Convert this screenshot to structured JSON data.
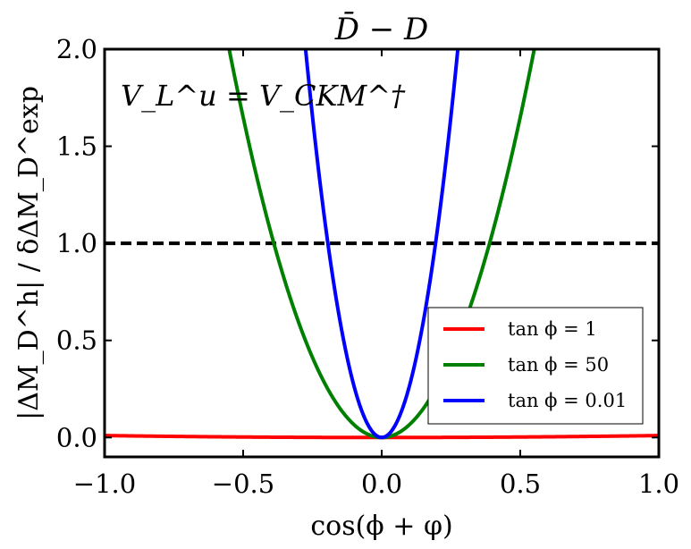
{
  "chart_data": {
    "type": "line",
    "title": "D̄ − D",
    "xlabel": "cos(ϕ + φ)",
    "ylabel": "|ΔM_D^h| / δΔM_D^exp",
    "xlim": [
      -1.0,
      1.0
    ],
    "ylim": [
      -0.1,
      2.0
    ],
    "x_ticks": [
      "−1.0",
      "−0.5",
      "0.0",
      "0.5",
      "1.0"
    ],
    "y_ticks": [
      "0.0",
      "0.5",
      "1.0",
      "1.5",
      "2.0"
    ],
    "x_tick_values": [
      -1.0,
      -0.5,
      0.0,
      0.5,
      1.0
    ],
    "y_tick_values": [
      0.0,
      0.5,
      1.0,
      1.5,
      2.0
    ],
    "annotation": "V_L^u = V_CKM^†",
    "reference_line": {
      "y": 1.0,
      "style": "dashed",
      "color": "#000000"
    },
    "legend_position": "lower-right",
    "series": [
      {
        "name": "tan ϕ = 1",
        "color": "#ff0000",
        "coefficient": 0.01
      },
      {
        "name": "tan ϕ = 50",
        "color": "#008000",
        "coefficient": 6.6
      },
      {
        "name": "tan ϕ = 0.01",
        "color": "#0000ff",
        "coefficient": 26.5
      }
    ],
    "curve_form": "y = coefficient * x^2"
  }
}
